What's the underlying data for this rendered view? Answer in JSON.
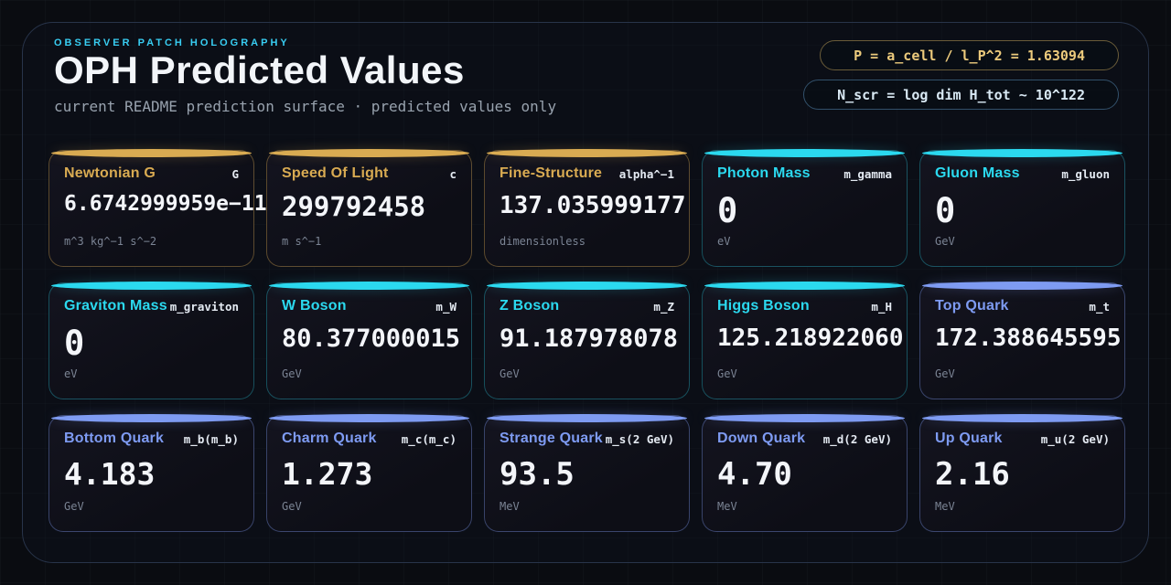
{
  "page": {
    "eyebrow": "OBSERVER PATCH HOLOGRAPHY",
    "title": "OPH Predicted Values",
    "subtitle": "current README prediction surface · predicted values only"
  },
  "badges": [
    {
      "text": "P = a_cell / l_P^2 = 1.63094",
      "accent": "gold"
    },
    {
      "text": "N_scr = log dim H_tot ~ 10^122",
      "accent": "blue"
    }
  ],
  "colors": {
    "gold": "#d9ab52",
    "cyan": "#2bd9ef",
    "blue": "#7e9bf2",
    "eyebrow_cyan": "#38cdf2",
    "value_white": "#f3f5f9"
  },
  "cards": [
    {
      "title": "Newtonian G",
      "symbol": "G",
      "value": "6.6742999959e−11",
      "unit": "m^3 kg^−1 s^−2",
      "accent": "gold"
    },
    {
      "title": "Speed Of Light",
      "symbol": "c",
      "value": "299792458",
      "unit": "m s^−1",
      "accent": "gold"
    },
    {
      "title": "Fine-Structure",
      "symbol": "alpha^−1",
      "value": "137.035999177",
      "unit": "dimensionless",
      "accent": "gold"
    },
    {
      "title": "Photon Mass",
      "symbol": "m_gamma",
      "value": "0",
      "unit": "eV",
      "accent": "cyan"
    },
    {
      "title": "Gluon Mass",
      "symbol": "m_gluon",
      "value": "0",
      "unit": "GeV",
      "accent": "cyan"
    },
    {
      "title": "Graviton Mass",
      "symbol": "m_graviton",
      "value": "0",
      "unit": "eV",
      "accent": "cyan"
    },
    {
      "title": "W Boson",
      "symbol": "m_W",
      "value": "80.377000015",
      "unit": "GeV",
      "accent": "cyan"
    },
    {
      "title": "Z Boson",
      "symbol": "m_Z",
      "value": "91.187978078",
      "unit": "GeV",
      "accent": "cyan"
    },
    {
      "title": "Higgs Boson",
      "symbol": "m_H",
      "value": "125.218922060",
      "unit": "GeV",
      "accent": "cyan"
    },
    {
      "title": "Top Quark",
      "symbol": "m_t",
      "value": "172.388645595",
      "unit": "GeV",
      "accent": "blue"
    },
    {
      "title": "Bottom Quark",
      "symbol": "m_b(m_b)",
      "value": "4.183",
      "unit": "GeV",
      "accent": "blue"
    },
    {
      "title": "Charm Quark",
      "symbol": "m_c(m_c)",
      "value": "1.273",
      "unit": "GeV",
      "accent": "blue"
    },
    {
      "title": "Strange Quark",
      "symbol": "m_s(2 GeV)",
      "value": "93.5",
      "unit": "MeV",
      "accent": "blue"
    },
    {
      "title": "Down Quark",
      "symbol": "m_d(2 GeV)",
      "value": "4.70",
      "unit": "MeV",
      "accent": "blue"
    },
    {
      "title": "Up Quark",
      "symbol": "m_u(2 GeV)",
      "value": "2.16",
      "unit": "MeV",
      "accent": "blue"
    }
  ]
}
